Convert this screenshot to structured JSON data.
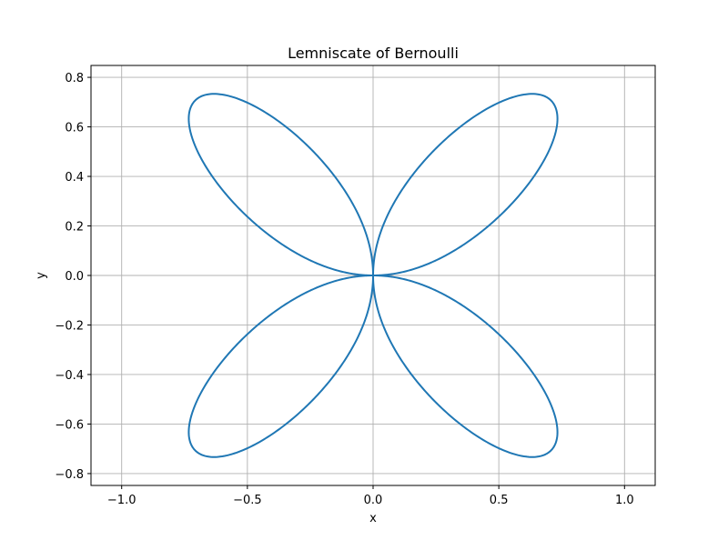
{
  "chart_data": {
    "type": "line",
    "title": "Lemniscate of Bernoulli",
    "xlabel": "x",
    "ylabel": "y",
    "xlim": [
      -1.122,
      1.122
    ],
    "ylim": [
      -0.848,
      0.848
    ],
    "xticks": [
      -1.0,
      -0.5,
      0.0,
      0.5,
      1.0
    ],
    "xtick_labels": [
      "−1.0",
      "−0.5",
      "0.0",
      "0.5",
      "1.0"
    ],
    "yticks": [
      -0.8,
      -0.6,
      -0.4,
      -0.2,
      0.0,
      0.2,
      0.4,
      0.6,
      0.8
    ],
    "ytick_labels": [
      "−0.8",
      "−0.6",
      "−0.4",
      "−0.2",
      "0.0",
      "0.2",
      "0.4",
      "0.6",
      "0.8"
    ],
    "grid": true,
    "series": [
      {
        "curve": "x = cos(t)*sin(2t)/(1+cos(2t)^2), y = sin(t)*sin(2t)/(1+cos(2t)^2)",
        "t_range": [
          0,
          6.283185
        ],
        "color": "#1f77b4"
      }
    ]
  }
}
